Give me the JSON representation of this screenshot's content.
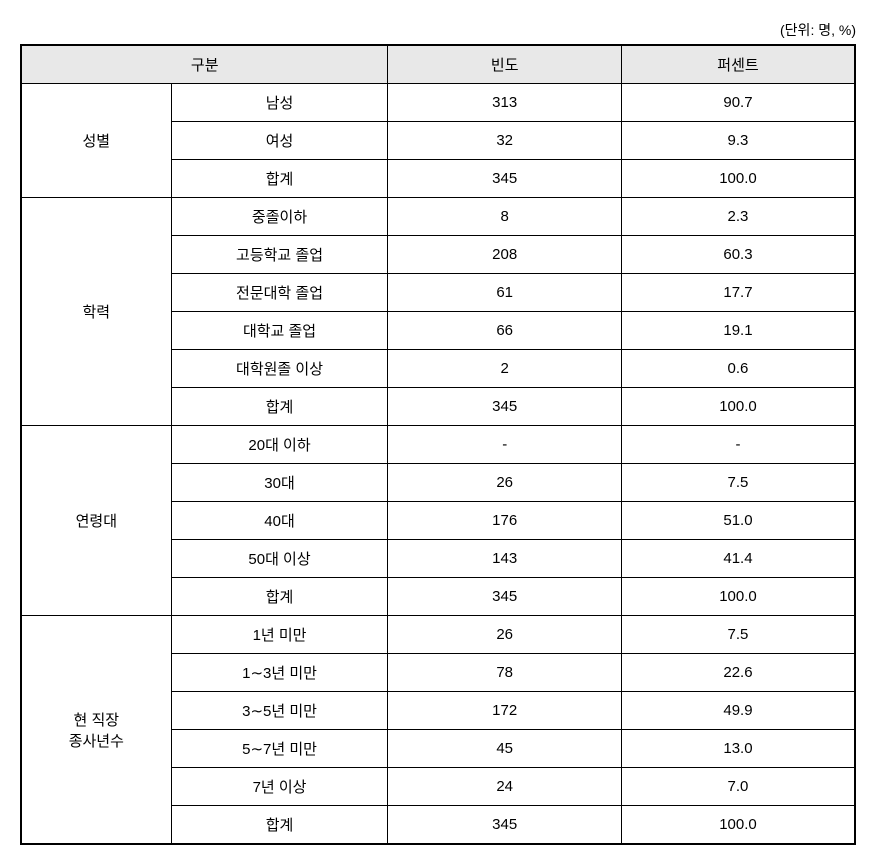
{
  "unit_label": "(단위: 명, %)",
  "header": {
    "category": "구분",
    "frequency": "빈도",
    "percent": "퍼센트"
  },
  "sections": [
    {
      "group": "성별",
      "rows": [
        {
          "label": "남성",
          "freq": "313",
          "pct": "90.7"
        },
        {
          "label": "여성",
          "freq": "32",
          "pct": "9.3"
        },
        {
          "label": "합계",
          "freq": "345",
          "pct": "100.0"
        }
      ]
    },
    {
      "group": "학력",
      "rows": [
        {
          "label": "중졸이하",
          "freq": "8",
          "pct": "2.3"
        },
        {
          "label": "고등학교 졸업",
          "freq": "208",
          "pct": "60.3"
        },
        {
          "label": "전문대학 졸업",
          "freq": "61",
          "pct": "17.7"
        },
        {
          "label": "대학교 졸업",
          "freq": "66",
          "pct": "19.1"
        },
        {
          "label": "대학원졸 이상",
          "freq": "2",
          "pct": "0.6"
        },
        {
          "label": "합계",
          "freq": "345",
          "pct": "100.0"
        }
      ]
    },
    {
      "group": "연령대",
      "rows": [
        {
          "label": "20대 이하",
          "freq": "-",
          "pct": "-"
        },
        {
          "label": "30대",
          "freq": "26",
          "pct": "7.5"
        },
        {
          "label": "40대",
          "freq": "176",
          "pct": "51.0"
        },
        {
          "label": "50대 이상",
          "freq": "143",
          "pct": "41.4"
        },
        {
          "label": "합계",
          "freq": "345",
          "pct": "100.0"
        }
      ]
    },
    {
      "group": "현 직장\n종사년수",
      "rows": [
        {
          "label": "1년 미만",
          "freq": "26",
          "pct": "7.5"
        },
        {
          "label": "1∼3년 미만",
          "freq": "78",
          "pct": "22.6"
        },
        {
          "label": "3∼5년 미만",
          "freq": "172",
          "pct": "49.9"
        },
        {
          "label": "5∼7년 미만",
          "freq": "45",
          "pct": "13.0"
        },
        {
          "label": "7년 이상",
          "freq": "24",
          "pct": "7.0"
        },
        {
          "label": "합계",
          "freq": "345",
          "pct": "100.0"
        }
      ]
    }
  ],
  "style": {
    "header_bg": "#e8e8e8",
    "border_color": "#000000",
    "font_size": 15,
    "outer_border_width": 2
  }
}
